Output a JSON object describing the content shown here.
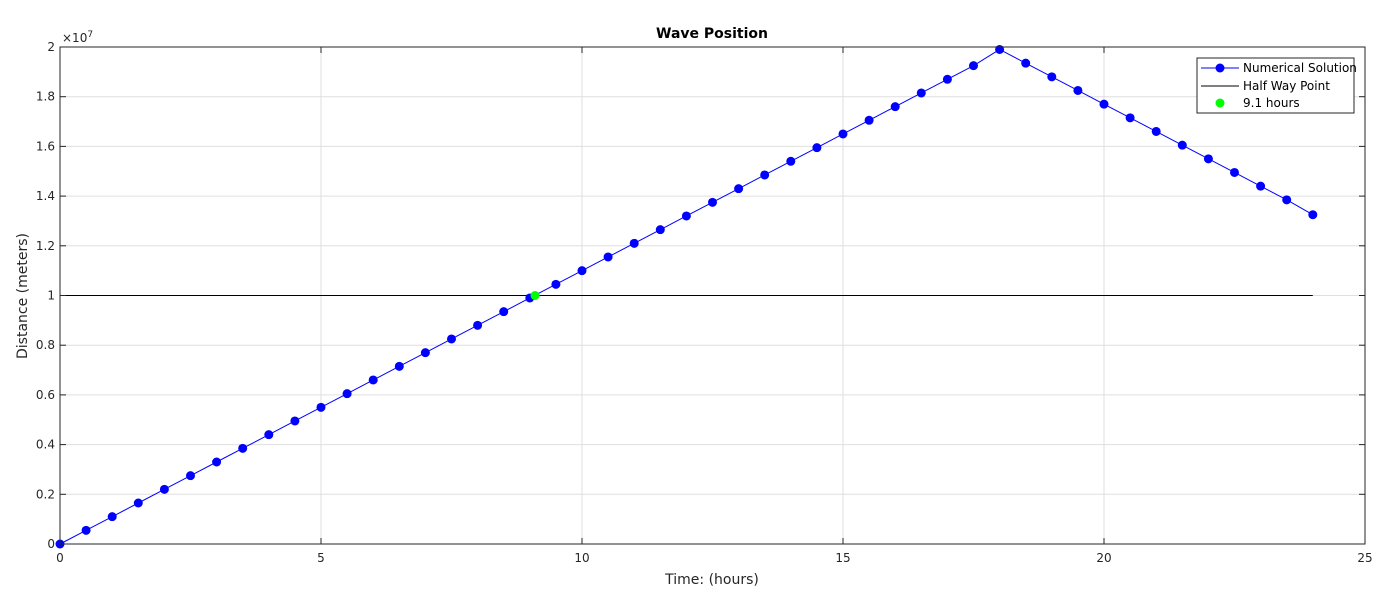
{
  "chart_data": {
    "type": "line",
    "title": "Wave Position",
    "xlabel": "Time: (hours)",
    "ylabel": "Distance (meters)",
    "y_multiplier_label": "×10",
    "y_multiplier_exponent": "7",
    "xlim": [
      0,
      25
    ],
    "ylim": [
      0,
      2.0
    ],
    "x_ticks": [
      0,
      5,
      10,
      15,
      20,
      25
    ],
    "x_tick_labels": [
      "0",
      "5",
      "10",
      "15",
      "20",
      "25"
    ],
    "y_ticks": [
      0,
      0.2,
      0.4,
      0.6,
      0.8,
      1.0,
      1.2,
      1.4,
      1.6,
      1.8,
      2.0
    ],
    "y_tick_labels": [
      "0",
      "0.2",
      "0.4",
      "0.6",
      "0.8",
      "1",
      "1.2",
      "1.4",
      "1.6",
      "1.8",
      "2"
    ],
    "grid": true,
    "legend_position": "top-right",
    "series": [
      {
        "name": "Numerical Solution",
        "color": "#0000ff",
        "marker": "circle",
        "x": [
          0,
          0.5,
          1,
          1.5,
          2,
          2.5,
          3,
          3.5,
          4,
          4.5,
          5,
          5.5,
          6,
          6.5,
          7,
          7.5,
          8,
          8.5,
          9,
          9.5,
          10,
          10.5,
          11,
          11.5,
          12,
          12.5,
          13,
          13.5,
          14,
          14.5,
          15,
          15.5,
          16,
          16.5,
          17,
          17.5,
          18,
          18.5,
          19,
          19.5,
          20,
          20.5,
          21,
          21.5,
          22,
          22.5,
          23,
          23.5,
          24
        ],
        "y": [
          0,
          0.055,
          0.11,
          0.165,
          0.22,
          0.275,
          0.33,
          0.385,
          0.44,
          0.495,
          0.55,
          0.605,
          0.66,
          0.715,
          0.77,
          0.825,
          0.88,
          0.935,
          0.99,
          1.045,
          1.1,
          1.155,
          1.21,
          1.265,
          1.32,
          1.375,
          1.43,
          1.485,
          1.54,
          1.595,
          1.65,
          1.705,
          1.76,
          1.815,
          1.87,
          1.925,
          1.99,
          1.935,
          1.88,
          1.825,
          1.77,
          1.715,
          1.66,
          1.605,
          1.55,
          1.495,
          1.44,
          1.385,
          1.325
        ]
      },
      {
        "name": "Half Way Point",
        "color": "#000000",
        "x": [
          0,
          24
        ],
        "y": [
          1.0,
          1.0
        ]
      },
      {
        "name": "9.1 hours",
        "color": "#00ff00",
        "marker": "circle",
        "x": [
          9.1
        ],
        "y": [
          1.0
        ]
      }
    ]
  }
}
